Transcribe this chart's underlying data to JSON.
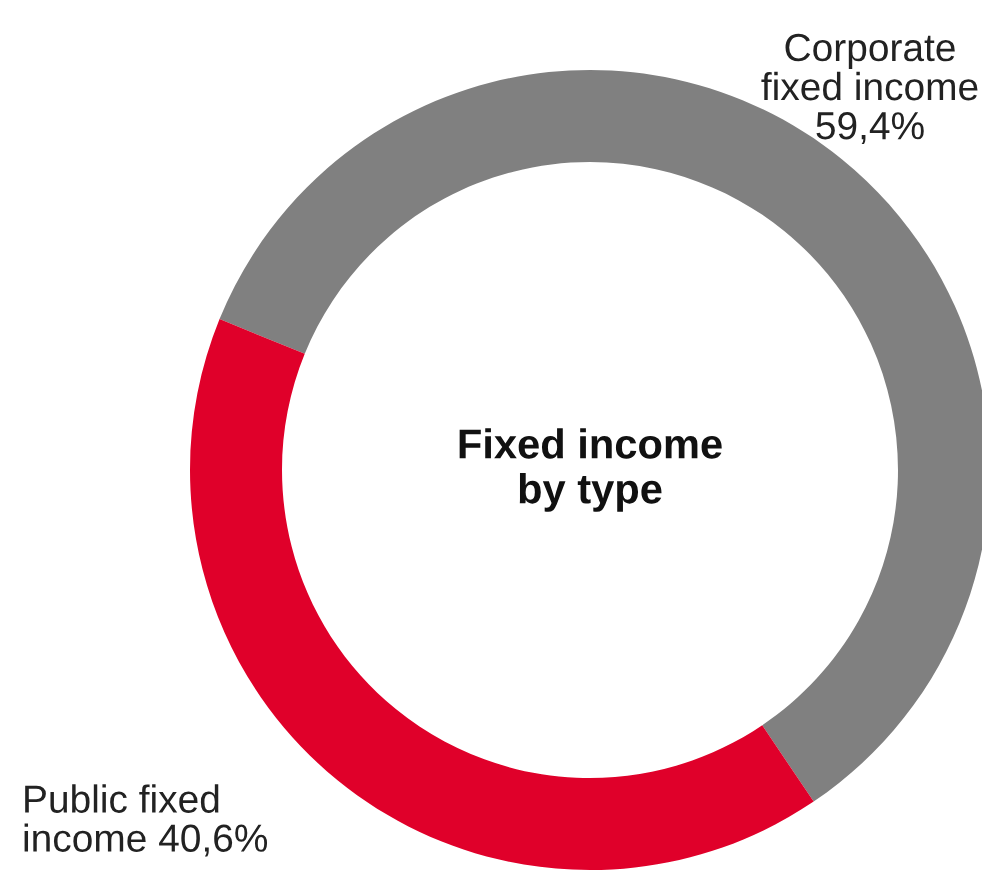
{
  "chart_data": {
    "type": "donut",
    "title": "Fixed income\nby type",
    "categories": [
      "Corporate\nfixed income",
      "Public fixed\nincome"
    ],
    "values": [
      59.4,
      40.6
    ],
    "value_labels": [
      "59,4%",
      "40,6%"
    ],
    "colors": [
      "#808080",
      "#e0002a"
    ]
  }
}
